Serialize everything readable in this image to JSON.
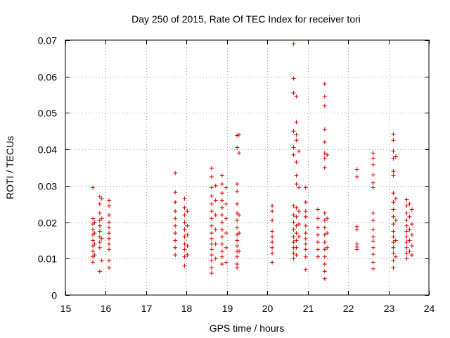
{
  "chart_data": {
    "type": "scatter",
    "title": "Day 250 of 2015, Rate Of TEC Index for receiver tori",
    "xlabel": "GPS time / hours",
    "ylabel": "ROTI / TECUs",
    "xlim": [
      15,
      24
    ],
    "ylim": [
      0,
      0.07
    ],
    "grid": true,
    "marker": "+",
    "color": "#e00000",
    "xticks": [
      15,
      16,
      17,
      18,
      19,
      20,
      21,
      22,
      23,
      24
    ],
    "xtick_labels": [
      "15",
      "16",
      "17",
      "18",
      "19",
      "20",
      "21",
      "22",
      "23",
      "24"
    ],
    "yticks": [
      0,
      0.01,
      0.02,
      0.03,
      0.04,
      0.05,
      0.06,
      0.07
    ],
    "ytick_labels": [
      "0",
      "0.01",
      "0.02",
      "0.03",
      "0.04",
      "0.05",
      "0.06",
      "0.07"
    ],
    "series": [
      {
        "name": "ROTI",
        "points": [
          [
            15.68,
            0.0295
          ],
          [
            15.68,
            0.021
          ],
          [
            15.68,
            0.0195
          ],
          [
            15.68,
            0.018
          ],
          [
            15.68,
            0.0165
          ],
          [
            15.68,
            0.015
          ],
          [
            15.68,
            0.0135
          ],
          [
            15.68,
            0.012
          ],
          [
            15.68,
            0.0105
          ],
          [
            15.68,
            0.009
          ],
          [
            15.72,
            0.02
          ],
          [
            15.72,
            0.017
          ],
          [
            15.72,
            0.014
          ],
          [
            15.72,
            0.011
          ],
          [
            15.85,
            0.027
          ],
          [
            15.85,
            0.025
          ],
          [
            15.85,
            0.0225
          ],
          [
            15.85,
            0.0205
          ],
          [
            15.85,
            0.019
          ],
          [
            15.85,
            0.0175
          ],
          [
            15.85,
            0.016
          ],
          [
            15.85,
            0.0145
          ],
          [
            15.85,
            0.013
          ],
          [
            15.85,
            0.0065
          ],
          [
            15.9,
            0.0265
          ],
          [
            15.9,
            0.021
          ],
          [
            15.9,
            0.0155
          ],
          [
            15.9,
            0.0095
          ],
          [
            16.08,
            0.026
          ],
          [
            16.08,
            0.0245
          ],
          [
            16.08,
            0.022
          ],
          [
            16.08,
            0.02
          ],
          [
            16.08,
            0.0185
          ],
          [
            16.08,
            0.017
          ],
          [
            16.08,
            0.0155
          ],
          [
            16.08,
            0.014
          ],
          [
            16.08,
            0.0125
          ],
          [
            16.08,
            0.0095
          ],
          [
            16.08,
            0.0075
          ],
          [
            17.72,
            0.0335
          ],
          [
            17.72,
            0.0282
          ],
          [
            17.72,
            0.0255
          ],
          [
            17.72,
            0.023
          ],
          [
            17.72,
            0.021
          ],
          [
            17.72,
            0.019
          ],
          [
            17.72,
            0.017
          ],
          [
            17.72,
            0.015
          ],
          [
            17.72,
            0.013
          ],
          [
            17.72,
            0.011
          ],
          [
            17.95,
            0.0265
          ],
          [
            17.95,
            0.024
          ],
          [
            17.95,
            0.022
          ],
          [
            17.95,
            0.02
          ],
          [
            17.95,
            0.018
          ],
          [
            17.95,
            0.016
          ],
          [
            17.95,
            0.014
          ],
          [
            17.95,
            0.0125
          ],
          [
            17.95,
            0.0105
          ],
          [
            17.95,
            0.008
          ],
          [
            18.02,
            0.023
          ],
          [
            18.02,
            0.019
          ],
          [
            18.02,
            0.0165
          ],
          [
            18.02,
            0.0135
          ],
          [
            18.02,
            0.011
          ],
          [
            18.62,
            0.0348
          ],
          [
            18.62,
            0.0325
          ],
          [
            18.62,
            0.0295
          ],
          [
            18.62,
            0.0272
          ],
          [
            18.62,
            0.025
          ],
          [
            18.62,
            0.023
          ],
          [
            18.62,
            0.021
          ],
          [
            18.62,
            0.019
          ],
          [
            18.62,
            0.017
          ],
          [
            18.62,
            0.0155
          ],
          [
            18.62,
            0.014
          ],
          [
            18.62,
            0.0125
          ],
          [
            18.62,
            0.011
          ],
          [
            18.62,
            0.0095
          ],
          [
            18.62,
            0.0075
          ],
          [
            18.62,
            0.006
          ],
          [
            18.72,
            0.03
          ],
          [
            18.72,
            0.026
          ],
          [
            18.72,
            0.022
          ],
          [
            18.72,
            0.018
          ],
          [
            18.72,
            0.014
          ],
          [
            18.72,
            0.01
          ],
          [
            18.88,
            0.0328
          ],
          [
            18.88,
            0.0305
          ],
          [
            18.88,
            0.028
          ],
          [
            18.88,
            0.026
          ],
          [
            18.88,
            0.024
          ],
          [
            18.88,
            0.022
          ],
          [
            18.88,
            0.02
          ],
          [
            18.88,
            0.018
          ],
          [
            18.88,
            0.016
          ],
          [
            18.88,
            0.014
          ],
          [
            18.88,
            0.012
          ],
          [
            18.88,
            0.0105
          ],
          [
            18.88,
            0.0085
          ],
          [
            18.98,
            0.0295
          ],
          [
            18.98,
            0.025
          ],
          [
            18.98,
            0.021
          ],
          [
            18.98,
            0.017
          ],
          [
            18.98,
            0.013
          ],
          [
            18.98,
            0.009
          ],
          [
            19.25,
            0.0438
          ],
          [
            19.25,
            0.0405
          ],
          [
            19.25,
            0.0305
          ],
          [
            19.25,
            0.0285
          ],
          [
            19.25,
            0.025
          ],
          [
            19.25,
            0.0225
          ],
          [
            19.25,
            0.0205
          ],
          [
            19.25,
            0.0185
          ],
          [
            19.25,
            0.0165
          ],
          [
            19.25,
            0.015
          ],
          [
            19.25,
            0.0135
          ],
          [
            19.25,
            0.012
          ],
          [
            19.25,
            0.0105
          ],
          [
            19.25,
            0.0085
          ],
          [
            19.25,
            0.0075
          ],
          [
            19.3,
            0.044
          ],
          [
            19.3,
            0.039
          ],
          [
            19.3,
            0.022
          ],
          [
            19.3,
            0.017
          ],
          [
            19.3,
            0.012
          ],
          [
            20.12,
            0.0245
          ],
          [
            20.12,
            0.023
          ],
          [
            20.12,
            0.0205
          ],
          [
            20.12,
            0.0175
          ],
          [
            20.12,
            0.016
          ],
          [
            20.12,
            0.0145
          ],
          [
            20.12,
            0.013
          ],
          [
            20.12,
            0.0115
          ],
          [
            20.12,
            0.009
          ],
          [
            20.65,
            0.069
          ],
          [
            20.65,
            0.0595
          ],
          [
            20.65,
            0.0555
          ],
          [
            20.65,
            0.045
          ],
          [
            20.65,
            0.0405
          ],
          [
            20.65,
            0.0385
          ],
          [
            20.65,
            0.0245
          ],
          [
            20.65,
            0.022
          ],
          [
            20.65,
            0.02
          ],
          [
            20.65,
            0.018
          ],
          [
            20.65,
            0.016
          ],
          [
            20.65,
            0.0145
          ],
          [
            20.65,
            0.013
          ],
          [
            20.65,
            0.0115
          ],
          [
            20.65,
            0.01
          ],
          [
            20.72,
            0.0545
          ],
          [
            20.72,
            0.0475
          ],
          [
            20.72,
            0.044
          ],
          [
            20.72,
            0.0425
          ],
          [
            20.72,
            0.0365
          ],
          [
            20.72,
            0.0328
          ],
          [
            20.72,
            0.0305
          ],
          [
            20.72,
            0.024
          ],
          [
            20.72,
            0.0215
          ],
          [
            20.72,
            0.019
          ],
          [
            20.72,
            0.017
          ],
          [
            20.72,
            0.015
          ],
          [
            20.72,
            0.013
          ],
          [
            20.72,
            0.011
          ],
          [
            20.78,
            0.0395
          ],
          [
            20.78,
            0.0295
          ],
          [
            20.78,
            0.023
          ],
          [
            20.78,
            0.0195
          ],
          [
            20.78,
            0.016
          ],
          [
            20.95,
            0.0295
          ],
          [
            20.95,
            0.0255
          ],
          [
            20.95,
            0.023
          ],
          [
            20.95,
            0.0215
          ],
          [
            20.95,
            0.019
          ],
          [
            20.95,
            0.017
          ],
          [
            20.95,
            0.0155
          ],
          [
            20.95,
            0.014
          ],
          [
            20.95,
            0.0125
          ],
          [
            20.95,
            0.0105
          ],
          [
            20.95,
            0.007
          ],
          [
            21.25,
            0.0235
          ],
          [
            21.25,
            0.021
          ],
          [
            21.25,
            0.0185
          ],
          [
            21.25,
            0.0165
          ],
          [
            21.25,
            0.0145
          ],
          [
            21.25,
            0.0125
          ],
          [
            21.25,
            0.0105
          ],
          [
            21.42,
            0.058
          ],
          [
            21.42,
            0.0545
          ],
          [
            21.42,
            0.052
          ],
          [
            21.42,
            0.0455
          ],
          [
            21.42,
            0.042
          ],
          [
            21.42,
            0.039
          ],
          [
            21.42,
            0.0375
          ],
          [
            21.42,
            0.035
          ],
          [
            21.42,
            0.0225
          ],
          [
            21.42,
            0.0205
          ],
          [
            21.42,
            0.0185
          ],
          [
            21.42,
            0.0165
          ],
          [
            21.42,
            0.0145
          ],
          [
            21.42,
            0.0125
          ],
          [
            21.42,
            0.0105
          ],
          [
            21.42,
            0.0085
          ],
          [
            21.42,
            0.0065
          ],
          [
            21.42,
            0.0045
          ],
          [
            21.48,
            0.0385
          ],
          [
            21.48,
            0.021
          ],
          [
            21.48,
            0.017
          ],
          [
            21.48,
            0.013
          ],
          [
            22.22,
            0.0345
          ],
          [
            22.22,
            0.0325
          ],
          [
            22.22,
            0.0188
          ],
          [
            22.22,
            0.018
          ],
          [
            22.22,
            0.014
          ],
          [
            22.22,
            0.0132
          ],
          [
            22.22,
            0.0125
          ],
          [
            22.62,
            0.039
          ],
          [
            22.62,
            0.0375
          ],
          [
            22.62,
            0.0358
          ],
          [
            22.62,
            0.033
          ],
          [
            22.62,
            0.0308
          ],
          [
            22.62,
            0.0295
          ],
          [
            22.62,
            0.0225
          ],
          [
            22.62,
            0.0205
          ],
          [
            22.62,
            0.018
          ],
          [
            22.62,
            0.016
          ],
          [
            22.62,
            0.0148
          ],
          [
            22.62,
            0.013
          ],
          [
            22.62,
            0.0112
          ],
          [
            22.62,
            0.009
          ],
          [
            22.62,
            0.0072
          ],
          [
            23.12,
            0.0442
          ],
          [
            23.12,
            0.0425
          ],
          [
            23.12,
            0.0395
          ],
          [
            23.12,
            0.0375
          ],
          [
            23.12,
            0.034
          ],
          [
            23.12,
            0.0328
          ],
          [
            23.12,
            0.028
          ],
          [
            23.12,
            0.0255
          ],
          [
            23.12,
            0.0235
          ],
          [
            23.12,
            0.0215
          ],
          [
            23.12,
            0.0195
          ],
          [
            23.12,
            0.0175
          ],
          [
            23.12,
            0.016
          ],
          [
            23.12,
            0.0145
          ],
          [
            23.12,
            0.013
          ],
          [
            23.12,
            0.0115
          ],
          [
            23.12,
            0.0095
          ],
          [
            23.12,
            0.0075
          ],
          [
            23.18,
            0.038
          ],
          [
            23.18,
            0.0265
          ],
          [
            23.18,
            0.0205
          ],
          [
            23.18,
            0.015
          ],
          [
            23.18,
            0.0105
          ],
          [
            23.45,
            0.0262
          ],
          [
            23.45,
            0.0245
          ],
          [
            23.45,
            0.0225
          ],
          [
            23.45,
            0.0205
          ],
          [
            23.45,
            0.019
          ],
          [
            23.45,
            0.0175
          ],
          [
            23.45,
            0.016
          ],
          [
            23.45,
            0.0145
          ],
          [
            23.45,
            0.013
          ],
          [
            23.45,
            0.0115
          ],
          [
            23.45,
            0.01
          ],
          [
            23.52,
            0.025
          ],
          [
            23.52,
            0.0215
          ],
          [
            23.52,
            0.018
          ],
          [
            23.52,
            0.015
          ],
          [
            23.52,
            0.012
          ],
          [
            23.58,
            0.0235
          ],
          [
            23.58,
            0.0195
          ],
          [
            23.58,
            0.0165
          ],
          [
            23.58,
            0.0135
          ],
          [
            23.58,
            0.011
          ]
        ]
      }
    ]
  }
}
